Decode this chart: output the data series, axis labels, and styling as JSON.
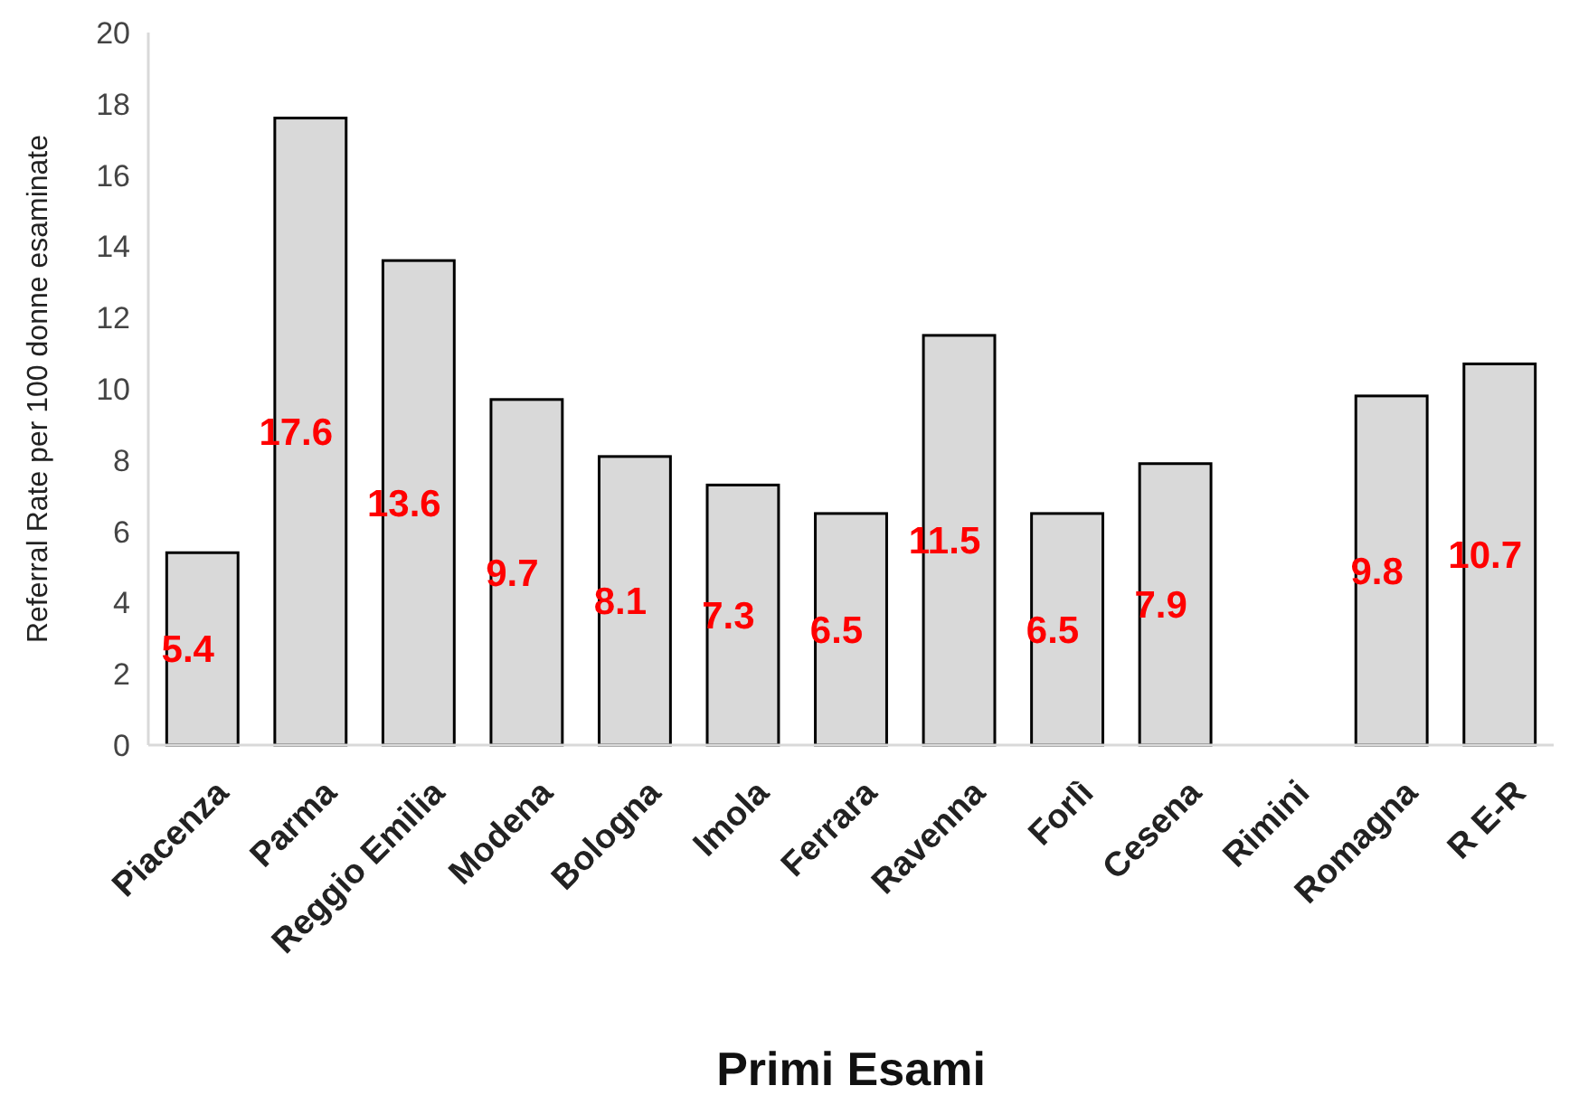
{
  "chart_data": {
    "type": "bar",
    "xlabel": "Primi Esami",
    "ylabel": "Referral Rate per 100 donne esaminate",
    "categories": [
      "Piacenza",
      "Parma",
      "Reggio Emilia",
      "Modena",
      "Bologna",
      "Imola",
      "Ferrara",
      "Ravenna",
      "Forlì",
      "Cesena",
      "Rimini",
      "Romagna",
      "R E-R"
    ],
    "values": [
      5.4,
      17.6,
      13.6,
      9.7,
      8.1,
      7.3,
      6.5,
      11.5,
      6.5,
      7.9,
      null,
      9.8,
      10.7
    ],
    "color": "#d9d9d9",
    "ylim": [
      0,
      20
    ],
    "yticks": [
      0,
      2,
      4,
      6,
      8,
      10,
      12,
      14,
      16,
      18,
      20
    ],
    "grid": false,
    "data_labels": true
  }
}
